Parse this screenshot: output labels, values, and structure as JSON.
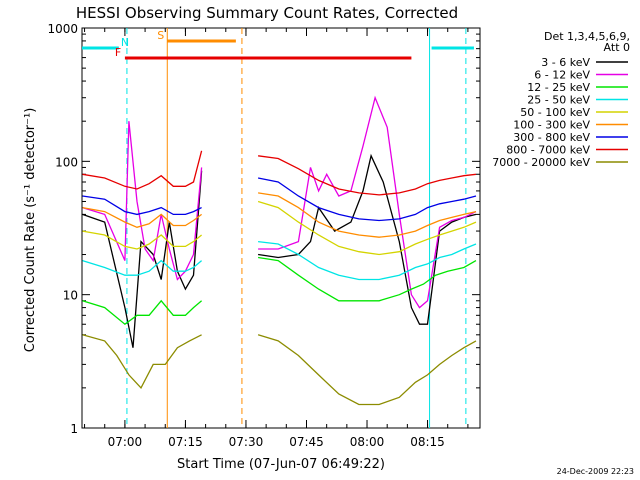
{
  "chart_data": {
    "type": "line",
    "title": "HESSI Observing Summary Count Rates, Corrected",
    "xlabel": "Start Time (07-Jun-07 06:49:22)",
    "ylabel": "Corrected Count Rate (s⁻¹ detector⁻¹)",
    "y_scale": "log",
    "ylim": [
      1,
      1000
    ],
    "xlim": [
      "06:49:22",
      "08:28:00"
    ],
    "x_ticks": [
      "07:00",
      "07:15",
      "07:30",
      "07:45",
      "08:00",
      "08:15"
    ],
    "y_ticks": [
      "1",
      "10",
      "100",
      "1000"
    ],
    "legend_header": [
      "Det 1,3,4,5,6,9,",
      "Att 0"
    ],
    "legend_position": "right",
    "footer_date": "24-Dec-2009 22:23",
    "x_time_axis_minutes": true,
    "flag_bars": [
      {
        "label": "N",
        "color": "#00e5e5",
        "segments": [
          [
            "06:49:22",
            "06:58:30"
          ],
          [
            "08:16:00",
            "08:26:30"
          ]
        ]
      },
      {
        "label": "S",
        "color": "#ff8c00",
        "segments": [
          [
            "07:10:30",
            "07:27:30"
          ]
        ]
      },
      {
        "label": "F",
        "color": "#e60000",
        "segments": [
          [
            "07:00:00",
            "08:11:00"
          ]
        ]
      }
    ],
    "vertical_lines": [
      {
        "time": "07:00:30",
        "color": "#00e5e5",
        "style": "dashed"
      },
      {
        "time": "07:10:30",
        "color": "#ff8c00",
        "style": "solid"
      },
      {
        "time": "07:29:00",
        "color": "#ff8c00",
        "style": "dashed"
      },
      {
        "time": "08:15:30",
        "color": "#00e5e5",
        "style": "solid"
      },
      {
        "time": "08:24:30",
        "color": "#00e5e5",
        "style": "dashed"
      }
    ],
    "data_gaps": [
      [
        "07:19:30",
        "07:32:30"
      ]
    ],
    "series": [
      {
        "name": "3 - 6 keV",
        "color": "#000000",
        "x": [
          "06:49:30",
          "06:55:00",
          "07:00:00",
          "07:02:00",
          "07:04:00",
          "07:07:00",
          "07:09:00",
          "07:11:00",
          "07:13:00",
          "07:15:00",
          "07:17:00",
          "07:19:00",
          "07:33:00",
          "07:38:00",
          "07:43:00",
          "07:46:00",
          "07:48:00",
          "07:52:00",
          "07:56:00",
          "07:59:00",
          "08:01:00",
          "08:04:00",
          "08:08:00",
          "08:11:00",
          "08:13:00",
          "08:15:00",
          "08:18:00",
          "08:21:00",
          "08:24:00",
          "08:27:00"
        ],
        "values": [
          40,
          35,
          8,
          4,
          25,
          20,
          13,
          35,
          15,
          11,
          14,
          85,
          20,
          19,
          20,
          25,
          45,
          30,
          35,
          60,
          110,
          70,
          25,
          8,
          6,
          6,
          30,
          35,
          38,
          40
        ]
      },
      {
        "name": "6 - 12 keV",
        "color": "#e600e5",
        "x": [
          "06:49:30",
          "06:55:00",
          "07:00:00",
          "07:01:00",
          "07:03:00",
          "07:05:00",
          "07:07:00",
          "07:09:00",
          "07:11:00",
          "07:13:00",
          "07:15:00",
          "07:17:00",
          "07:19:00",
          "07:33:00",
          "07:38:00",
          "07:43:00",
          "07:46:00",
          "07:48:00",
          "07:50:00",
          "07:53:00",
          "07:56:00",
          "07:59:00",
          "08:02:00",
          "08:05:00",
          "08:08:00",
          "08:11:00",
          "08:13:00",
          "08:15:00",
          "08:18:00",
          "08:21:00",
          "08:24:00",
          "08:27:00"
        ],
        "values": [
          45,
          40,
          18,
          200,
          50,
          22,
          18,
          40,
          22,
          13,
          15,
          20,
          90,
          22,
          22,
          25,
          90,
          60,
          80,
          55,
          60,
          130,
          300,
          180,
          40,
          10,
          8,
          9,
          32,
          36,
          38,
          42
        ]
      },
      {
        "name": "12 - 25 keV",
        "color": "#00e600",
        "x": [
          "06:49:30",
          "06:55:00",
          "07:00:00",
          "07:03:00",
          "07:06:00",
          "07:09:00",
          "07:12:00",
          "07:15:00",
          "07:17:00",
          "07:19:00",
          "07:33:00",
          "07:38:00",
          "07:43:00",
          "07:48:00",
          "07:53:00",
          "07:58:00",
          "08:03:00",
          "08:08:00",
          "08:11:00",
          "08:14:00",
          "08:17:00",
          "08:20:00",
          "08:24:00",
          "08:27:00"
        ],
        "values": [
          9,
          8,
          6,
          7,
          7,
          9,
          7,
          7,
          8,
          9,
          19,
          18,
          14,
          11,
          9,
          9,
          9,
          10,
          11,
          12,
          14,
          15,
          16,
          18
        ]
      },
      {
        "name": "25 - 50 keV",
        "color": "#00e5e5",
        "x": [
          "06:49:30",
          "06:55:00",
          "07:00:00",
          "07:03:00",
          "07:06:00",
          "07:09:00",
          "07:12:00",
          "07:15:00",
          "07:17:00",
          "07:19:00",
          "07:33:00",
          "07:38:00",
          "07:43:00",
          "07:48:00",
          "07:53:00",
          "07:58:00",
          "08:03:00",
          "08:08:00",
          "08:12:00",
          "08:15:00",
          "08:18:00",
          "08:21:00",
          "08:24:00",
          "08:27:00"
        ],
        "values": [
          18,
          16,
          14,
          14,
          15,
          18,
          15,
          15,
          16,
          18,
          25,
          24,
          20,
          16,
          14,
          13,
          13,
          14,
          16,
          17,
          19,
          20,
          22,
          24
        ]
      },
      {
        "name": "50 - 100 keV",
        "color": "#d4d400",
        "x": [
          "06:49:30",
          "06:55:00",
          "07:00:00",
          "07:03:00",
          "07:06:00",
          "07:09:00",
          "07:12:00",
          "07:15:00",
          "07:17:00",
          "07:19:00",
          "07:33:00",
          "07:38:00",
          "07:43:00",
          "07:48:00",
          "07:53:00",
          "07:58:00",
          "08:03:00",
          "08:08:00",
          "08:12:00",
          "08:15:00",
          "08:18:00",
          "08:21:00",
          "08:24:00",
          "08:27:00"
        ],
        "values": [
          30,
          28,
          23,
          22,
          24,
          28,
          23,
          23,
          25,
          28,
          50,
          45,
          35,
          28,
          23,
          21,
          20,
          21,
          24,
          26,
          28,
          30,
          32,
          35
        ]
      },
      {
        "name": "100 - 300 keV",
        "color": "#ff8c00",
        "x": [
          "06:49:30",
          "06:55:00",
          "07:00:00",
          "07:03:00",
          "07:06:00",
          "07:09:00",
          "07:12:00",
          "07:15:00",
          "07:17:00",
          "07:19:00",
          "07:33:00",
          "07:38:00",
          "07:43:00",
          "07:48:00",
          "07:53:00",
          "07:58:00",
          "08:03:00",
          "08:08:00",
          "08:12:00",
          "08:15:00",
          "08:18:00",
          "08:21:00",
          "08:24:00",
          "08:27:00"
        ],
        "values": [
          45,
          42,
          35,
          32,
          34,
          40,
          33,
          33,
          36,
          40,
          58,
          55,
          45,
          35,
          30,
          28,
          27,
          28,
          30,
          33,
          36,
          38,
          40,
          42
        ]
      },
      {
        "name": "300 - 800 keV",
        "color": "#0000e6",
        "x": [
          "06:49:30",
          "06:55:00",
          "07:00:00",
          "07:03:00",
          "07:06:00",
          "07:09:00",
          "07:12:00",
          "07:15:00",
          "07:17:00",
          "07:19:00",
          "07:33:00",
          "07:38:00",
          "07:43:00",
          "07:48:00",
          "07:53:00",
          "07:58:00",
          "08:03:00",
          "08:08:00",
          "08:12:00",
          "08:15:00",
          "08:18:00",
          "08:21:00",
          "08:24:00",
          "08:27:00"
        ],
        "values": [
          55,
          52,
          42,
          40,
          42,
          45,
          40,
          40,
          42,
          45,
          75,
          70,
          55,
          45,
          40,
          37,
          36,
          37,
          40,
          45,
          48,
          50,
          52,
          55
        ]
      },
      {
        "name": "800 - 7000 keV",
        "color": "#e60000",
        "x": [
          "06:49:30",
          "06:55:00",
          "07:00:00",
          "07:03:00",
          "07:06:00",
          "07:09:00",
          "07:12:00",
          "07:15:00",
          "07:17:00",
          "07:19:00",
          "07:33:00",
          "07:38:00",
          "07:43:00",
          "07:48:00",
          "07:53:00",
          "07:58:00",
          "08:03:00",
          "08:08:00",
          "08:12:00",
          "08:15:00",
          "08:18:00",
          "08:21:00",
          "08:24:00",
          "08:27:00"
        ],
        "values": [
          80,
          75,
          65,
          62,
          68,
          78,
          65,
          65,
          70,
          120,
          110,
          105,
          88,
          72,
          62,
          58,
          56,
          58,
          62,
          68,
          72,
          75,
          78,
          80
        ]
      },
      {
        "name": "7000 - 20000 keV",
        "color": "#8c8c00",
        "x": [
          "06:49:30",
          "06:55:00",
          "06:58:00",
          "07:01:00",
          "07:04:00",
          "07:07:00",
          "07:10:00",
          "07:13:00",
          "07:16:00",
          "07:19:00",
          "07:33:00",
          "07:38:00",
          "07:43:00",
          "07:48:00",
          "07:53:00",
          "07:58:00",
          "08:03:00",
          "08:08:00",
          "08:12:00",
          "08:15:00",
          "08:18:00",
          "08:21:00",
          "08:24:00",
          "08:27:00"
        ],
        "values": [
          5,
          4.5,
          3.5,
          2.5,
          2,
          3,
          3,
          4,
          4.5,
          5,
          5,
          4.5,
          3.5,
          2.5,
          1.8,
          1.5,
          1.5,
          1.7,
          2.2,
          2.5,
          3,
          3.5,
          4,
          4.5
        ]
      }
    ]
  }
}
